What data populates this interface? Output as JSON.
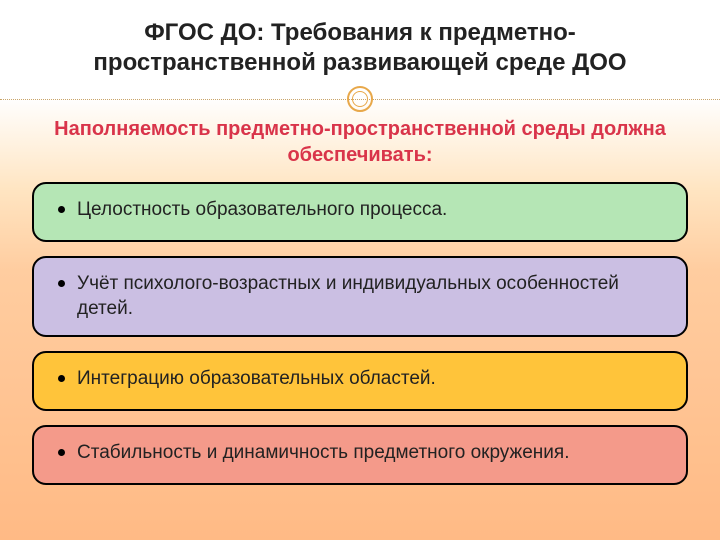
{
  "title": "ФГОС ДО: Требования к предметно-пространственной развивающей среде ДОО",
  "subtitle": "Наполняемость предметно-пространственной среды должна обеспечивать:",
  "subtitle_color": "#d9344a",
  "title_color": "#222222",
  "background_gradient": [
    "#ffffff",
    "#ffcda0"
  ],
  "divider_color": "#e8a84a",
  "items": [
    {
      "text": "Целостность образовательного процесса.",
      "fill": "#b5e6b5",
      "border": "#000000"
    },
    {
      "text": "Учёт психолого-возрастных и индивидуальных особенностей детей.",
      "fill": "#cbbfe3",
      "border": "#000000"
    },
    {
      "text": "Интеграцию образовательных областей.",
      "fill": "#ffc43a",
      "border": "#000000"
    },
    {
      "text": "Стабильность и динамичность предметного окружения.",
      "fill": "#f49a8a",
      "border": "#000000"
    }
  ],
  "typography": {
    "title_fontsize": 24,
    "title_weight": "bold",
    "subtitle_fontsize": 20,
    "subtitle_weight": "bold",
    "item_fontsize": 19,
    "font_family": "Arial"
  },
  "layout": {
    "card_border_radius": 14,
    "card_border_width": 2.5,
    "card_gap": 14
  }
}
